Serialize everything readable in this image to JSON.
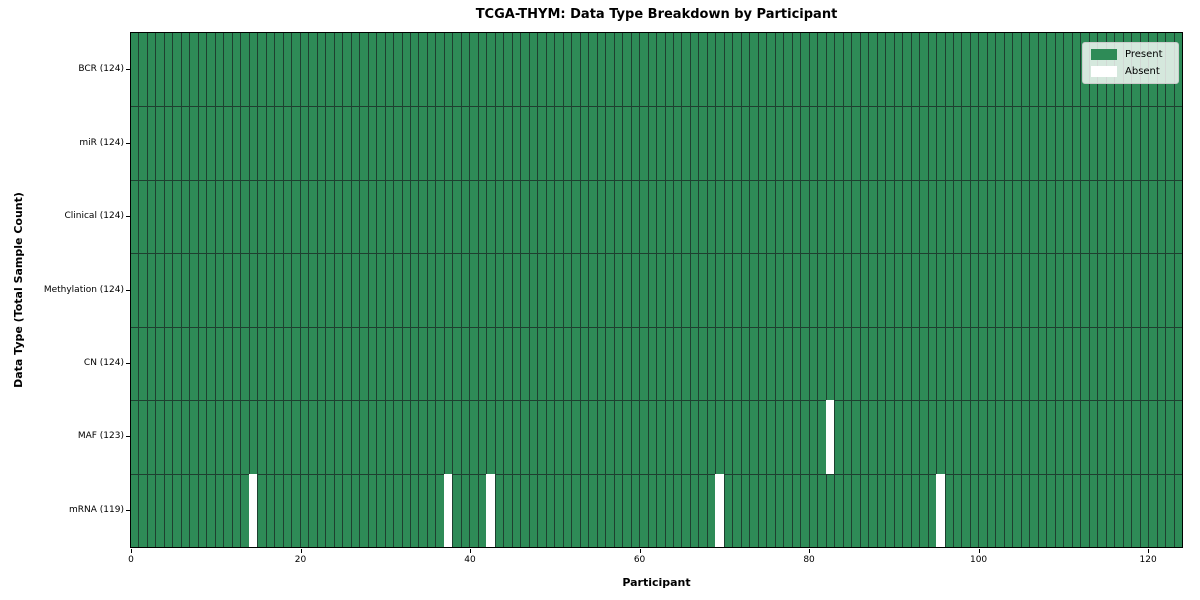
{
  "chart_data": {
    "type": "heatmap",
    "title": "TCGA-THYM: Data Type Breakdown by Participant",
    "xlabel": "Participant",
    "ylabel": "Data Type (Total Sample Count)",
    "n_participants": 124,
    "x_ticks": [
      0,
      20,
      40,
      60,
      80,
      100,
      120
    ],
    "xlim": [
      0,
      124
    ],
    "legend_position": "upper right",
    "rows": [
      {
        "label": "BCR (124)",
        "data_type": "BCR",
        "present_count": 124,
        "absent_participants": []
      },
      {
        "label": "miR (124)",
        "data_type": "miR",
        "present_count": 124,
        "absent_participants": []
      },
      {
        "label": "Clinical (124)",
        "data_type": "Clinical",
        "present_count": 124,
        "absent_participants": []
      },
      {
        "label": "Methylation (124)",
        "data_type": "Methylation",
        "present_count": 124,
        "absent_participants": []
      },
      {
        "label": "CN (124)",
        "data_type": "CN",
        "present_count": 124,
        "absent_participants": []
      },
      {
        "label": "MAF (123)",
        "data_type": "MAF",
        "present_count": 123,
        "absent_participants": [
          82
        ]
      },
      {
        "label": "mRNA (119)",
        "data_type": "mRNA",
        "present_count": 119,
        "absent_participants": [
          14,
          37,
          42,
          69,
          95
        ]
      }
    ],
    "legend": [
      {
        "label": "Present",
        "color": "#2e8b57"
      },
      {
        "label": "Absent",
        "color": "#ffffff"
      }
    ],
    "colors": {
      "present": "#2e8b57",
      "absent": "#ffffff",
      "cell_edge": "#1e4030",
      "spine": "#000000",
      "legend_bg": "rgba(255,255,255,0.8)",
      "legend_border": "#cccccc"
    }
  }
}
